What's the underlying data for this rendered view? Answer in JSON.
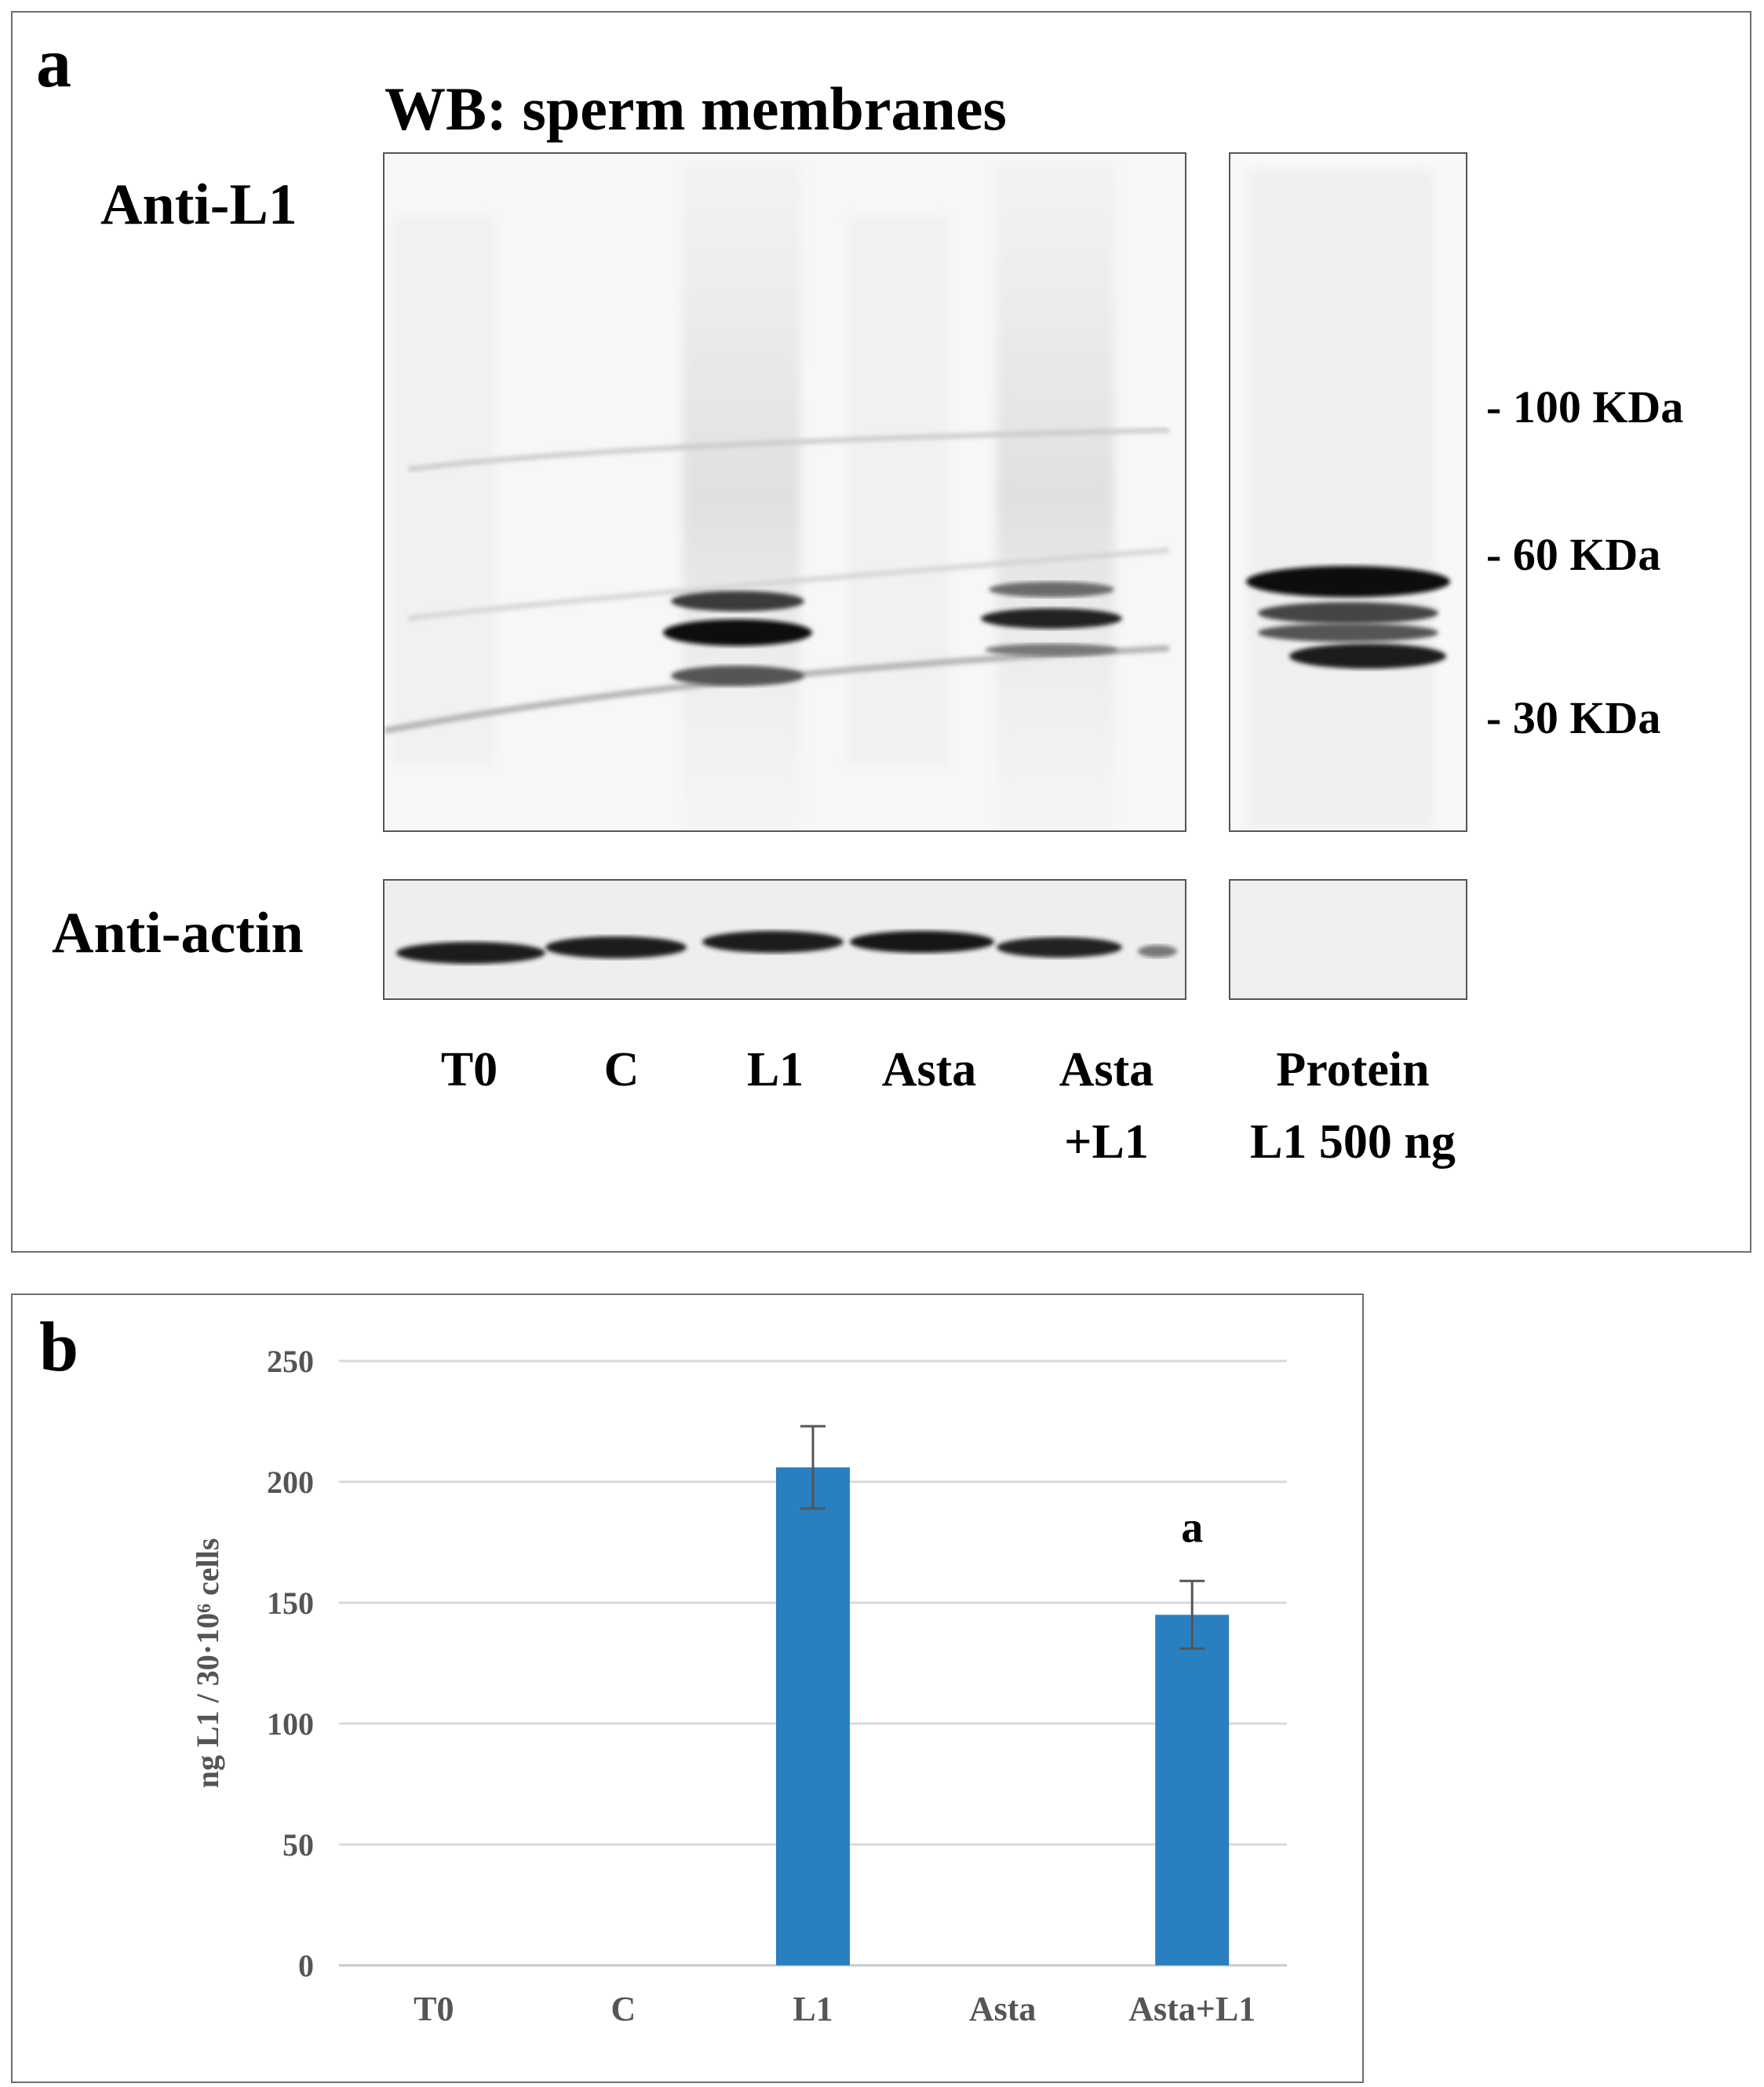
{
  "panel_a": {
    "label": "a",
    "title": "WB: sperm membranes",
    "blot_top_label": "Anti-L1",
    "blot_bottom_label": "Anti-actin",
    "lanes": [
      {
        "line1": "T0",
        "line2": ""
      },
      {
        "line1": "C",
        "line2": ""
      },
      {
        "line1": "L1",
        "line2": ""
      },
      {
        "line1": "Asta",
        "line2": ""
      },
      {
        "line1": "Asta",
        "line2": "+L1"
      }
    ],
    "protein_lane": {
      "line1": "Protein",
      "line2": "L1 500 ng"
    },
    "mw_markers": [
      "- 100 KDa",
      "- 60 KDa",
      "- 30 KDa"
    ]
  },
  "panel_b": {
    "label": "b"
  },
  "chart_data": {
    "type": "bar",
    "categories": [
      "T0",
      "C",
      "L1",
      "Asta",
      "Asta+L1"
    ],
    "values": [
      0,
      0,
      206,
      0,
      145
    ],
    "errors": [
      0,
      0,
      17,
      0,
      14
    ],
    "annotations": [
      {
        "category": "Asta+L1",
        "text": "a"
      }
    ],
    "ylabel": "ng L1 / 30·10⁶ cells",
    "ylim": [
      0,
      250
    ],
    "yticks": [
      0,
      50,
      100,
      150,
      200,
      250
    ],
    "grid": true,
    "bar_color": "#2a7fc0"
  }
}
